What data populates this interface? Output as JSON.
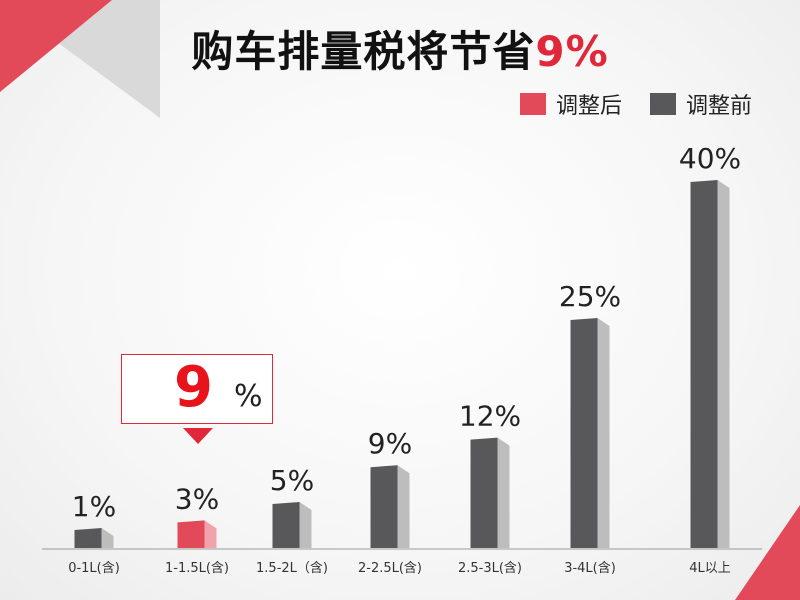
{
  "title": {
    "main": "购车排量税将节省",
    "highlight": "9%"
  },
  "legend": {
    "after_label": "调整后",
    "before_label": "调整前"
  },
  "callout": {
    "value": "9",
    "unit": "%"
  },
  "colors": {
    "after": "#e24a5a",
    "before": "#58585a",
    "accent": "#e0283a"
  },
  "chart_data": {
    "type": "bar",
    "title": "购车排量税将节省9%",
    "xlabel": "",
    "ylabel": "",
    "ylim": [
      0,
      40
    ],
    "categories": [
      "0-1L(含)",
      "1-1.5L(含)",
      "1.5-2L（含)",
      "2-2.5L(含)",
      "2.5-3L(含)",
      "3-4L(含)",
      "4L以上"
    ],
    "values": [
      1,
      3,
      5,
      9,
      12,
      25,
      40
    ],
    "value_labels": [
      "1%",
      "3%",
      "5%",
      "9%",
      "12%",
      "25%",
      "40%"
    ],
    "series": [
      {
        "name": "调整后",
        "categories": [
          "1-1.5L(含)"
        ]
      },
      {
        "name": "调整前",
        "categories": [
          "0-1L(含)",
          "1.5-2L（含)",
          "2-2.5L(含)",
          "2.5-3L(含)",
          "3-4L(含)",
          "4L以上"
        ]
      }
    ],
    "highlight_index": 1,
    "grid": false,
    "legend_position": "top-right"
  }
}
